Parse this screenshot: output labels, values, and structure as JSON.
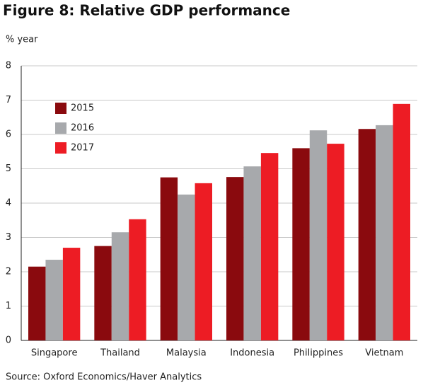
{
  "chart_data": {
    "type": "bar",
    "title": "Figure 8: Relative GDP performance",
    "y_label": "% year",
    "source": "Source: Oxford Economics/Haver Analytics",
    "categories": [
      "Singapore",
      "Thailand",
      "Malaysia",
      "Indonesia",
      "Philippines",
      "Vietnam"
    ],
    "series": [
      {
        "name": "2015",
        "color": "#8a0a0e",
        "values": [
          2.15,
          2.75,
          4.75,
          4.76,
          5.6,
          6.16
        ]
      },
      {
        "name": "2016",
        "color": "#a7a9ac",
        "values": [
          2.35,
          3.15,
          4.25,
          5.07,
          6.12,
          6.27
        ]
      },
      {
        "name": "2017",
        "color": "#ed1c24",
        "values": [
          2.7,
          3.53,
          4.58,
          5.46,
          5.73,
          6.89
        ]
      }
    ],
    "ylim": [
      0,
      8
    ],
    "yticks": [
      0,
      1,
      2,
      3,
      4,
      5,
      6,
      7,
      8
    ],
    "grid": true,
    "legend": "upper left"
  }
}
